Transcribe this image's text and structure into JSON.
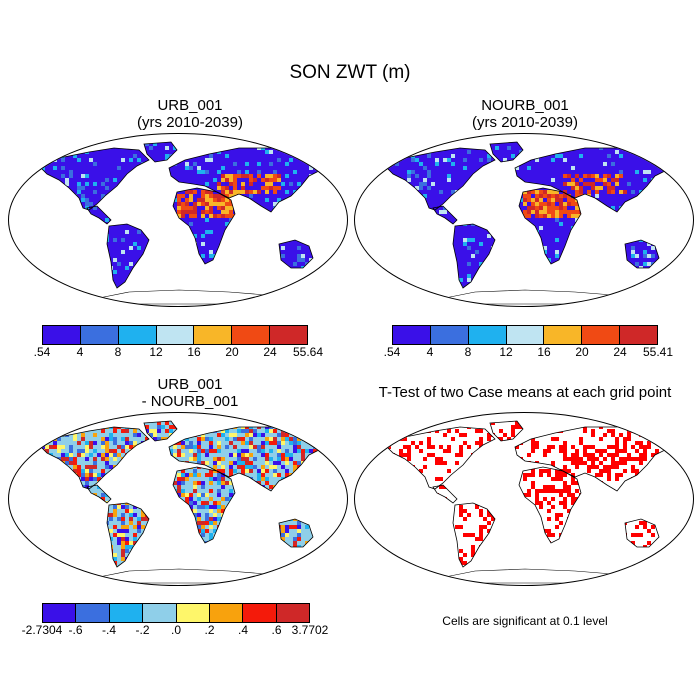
{
  "title": "SON ZWT (m)",
  "panels": [
    {
      "id": "urb",
      "title_line1": "URB_001",
      "title_line2": "(yrs 2010-2039)",
      "colorbar": {
        "colors": [
          "#3a10e8",
          "#3b6fdf",
          "#1fb1ef",
          "#bfe4f2",
          "#f8b628",
          "#f04a14",
          "#cf2828"
        ],
        "tick_labels": [
          ".54",
          "4",
          "8",
          "12",
          "16",
          "20",
          "24",
          "55.64"
        ]
      }
    },
    {
      "id": "nourb",
      "title_line1": "NOURB_001",
      "title_line2": "(yrs 2010-2039)",
      "colorbar": {
        "colors": [
          "#3a10e8",
          "#3b6fdf",
          "#1fb1ef",
          "#bfe4f2",
          "#f8b628",
          "#f04a14",
          "#cf2828"
        ],
        "tick_labels": [
          ".54",
          "4",
          "8",
          "12",
          "16",
          "20",
          "24",
          "55.41"
        ]
      }
    },
    {
      "id": "diff",
      "title_line1": "URB_001",
      "title_line2": "- NOURB_001",
      "colorbar": {
        "colors": [
          "#3a10e8",
          "#3b6fdf",
          "#1fb1ef",
          "#8fcfe9",
          "#fef66a",
          "#f8a20d",
          "#f41a0a",
          "#cf2828"
        ],
        "tick_labels": [
          "-2.7304",
          "-.6",
          "-.4",
          "-.2",
          ".0",
          ".2",
          ".4",
          ".6",
          "3.7702"
        ]
      }
    },
    {
      "id": "ttest",
      "title_line1": "T-Test of two Case means at each grid point",
      "title_line2": "",
      "note": "Cells are significant at 0.1 level"
    }
  ],
  "palettes": {
    "urb": {
      "ocean": "#ffffff",
      "base": "#3a10e8",
      "accents": [
        "#3b6fdf",
        "#1fb1ef",
        "#bfe4f2"
      ],
      "hot": [
        "#cf2828",
        "#f04a14",
        "#f8b628"
      ]
    },
    "diff": {
      "base": "#8fcfe9",
      "mix": [
        "#fef66a",
        "#f8a20d",
        "#1fb1ef",
        "#3b6fdf",
        "#f41a0a",
        "#cf2828",
        "#3a10e8"
      ]
    },
    "ttest": {
      "mark": "#ff0000"
    }
  }
}
